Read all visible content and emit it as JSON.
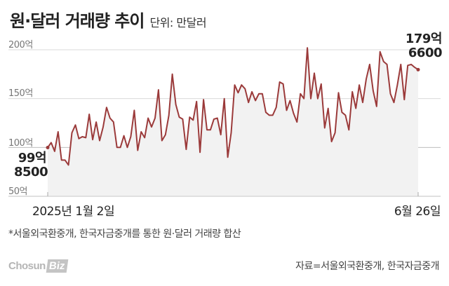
{
  "header": {
    "title": "원·달러 거래량 추이",
    "unit": "단위: 만달러"
  },
  "yaxis": {
    "ticks": [
      {
        "label": "200억",
        "value": 200
      },
      {
        "label": "150억",
        "value": 150
      },
      {
        "label": "100억",
        "value": 100
      },
      {
        "label": "50억",
        "value": 50
      }
    ]
  },
  "callouts": {
    "start_line1": "99억",
    "start_line2": "8500",
    "end_line1": "179억",
    "end_line2": "6600"
  },
  "xaxis": {
    "start_label": "2025년 1월 2일",
    "end_label": "6월 26일"
  },
  "footer": {
    "note": "*서울외국환중개, 한국자금중개를 통한 원·달러 거래량 합산",
    "source": "자료=서울외국환중개, 한국자금중개",
    "logo_text": "Chosun",
    "logo_badge": "Biz"
  },
  "colors": {
    "line": "#9b3a3a",
    "area": "#f2f2f2",
    "grid": "#d9d9d9"
  },
  "chart_data": {
    "type": "line",
    "title": "원·달러 거래량 추이",
    "subtitle": "단위: 만달러",
    "xlabel": "",
    "ylabel": "",
    "ylim": [
      50,
      200
    ],
    "grid": true,
    "x_range": [
      "2025-01-02",
      "2025-06-26"
    ],
    "y_tick_labels": [
      "50억",
      "100억",
      "150억",
      "200억"
    ],
    "annotations": [
      {
        "at": "2025-01-02",
        "text": "99억 8500",
        "value": 99.85
      },
      {
        "at": "2025-06-26",
        "text": "179억 6600",
        "value": 179.66
      }
    ],
    "series": [
      {
        "name": "원·달러 거래량 (억달러)",
        "values": [
          99.85,
          105,
          96,
          116,
          87,
          87,
          82,
          115,
          123,
          109,
          111,
          110,
          134,
          108,
          126,
          107,
          121,
          141,
          130,
          126,
          100,
          100,
          112,
          100,
          111,
          138,
          97,
          116,
          110,
          130,
          121,
          130,
          159,
          107,
          113,
          133,
          175,
          144,
          131,
          129,
          98,
          131,
          128,
          147,
          95,
          149,
          118,
          118,
          129,
          130,
          113,
          150,
          90,
          115,
          164,
          156,
          164,
          160,
          146,
          157,
          148,
          155,
          155,
          136,
          133,
          133,
          141,
          167,
          165,
          138,
          148,
          135,
          126,
          155,
          150,
          202,
          150,
          176,
          150,
          165,
          120,
          140,
          106,
          115,
          156,
          136,
          133,
          118,
          157,
          140,
          164,
          146,
          170,
          185,
          158,
          142,
          198,
          188,
          185,
          155,
          146,
          164,
          185,
          149,
          184,
          185,
          182,
          179.66
        ]
      }
    ]
  }
}
